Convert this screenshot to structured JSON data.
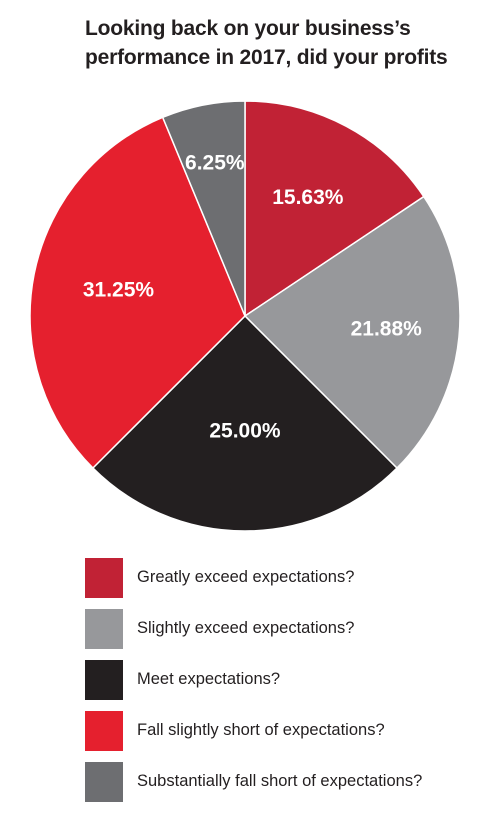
{
  "chart_data": {
    "type": "pie",
    "title_lines": [
      "Looking back on your business’s",
      "performance in 2017, did your profits"
    ],
    "slices": [
      {
        "label": "Greatly exceed expectations?",
        "value": 15.63,
        "value_label": "15.63%",
        "color": "#c12235"
      },
      {
        "label": "Slightly exceed expectations?",
        "value": 21.88,
        "value_label": "21.88%",
        "color": "#97989b"
      },
      {
        "label": "Meet expectations?",
        "value": 25.0,
        "value_label": "25.00%",
        "color": "#231f20"
      },
      {
        "label": "Fall slightly short of expectations?",
        "value": 31.25,
        "value_label": "31.25%",
        "color": "#e5202e"
      },
      {
        "label": "Substantially fall short of expectations?",
        "value": 6.25,
        "value_label": "6.25%",
        "color": "#6d6e71"
      }
    ],
    "start": "12 o'clock",
    "direction": "clockwise",
    "legend_placement": "bottom"
  }
}
